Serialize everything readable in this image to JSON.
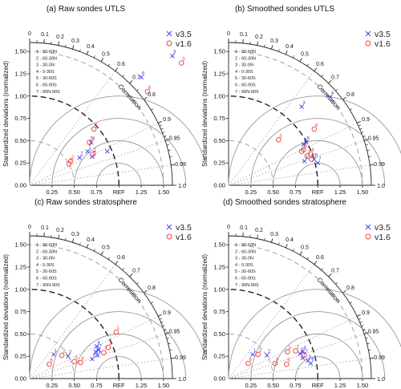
{
  "colors": {
    "v35": "#3a3af0",
    "v16": "#f03a3a"
  },
  "chart_data": [
    {
      "type": "scatter",
      "subtype": "taylor-diagram",
      "title": "(a) Raw sondes UTLS",
      "ylabel": "Standardized deviations (normalized)",
      "arc_label": "Correlation",
      "ref_label": "REF",
      "std_ticks": [
        "0.25",
        "0.50",
        "0.75",
        "1.00",
        "1.25",
        "1.50"
      ],
      "corr_ticks": [
        "0",
        "0.1",
        "0.2",
        "0.3",
        "0.4",
        "0.5",
        "0.6",
        "0.7",
        "0.8",
        "0.9",
        "0.95",
        "0.99",
        "1.0"
      ],
      "std_range": [
        0,
        1.6
      ],
      "grid": "dashed",
      "legend": {
        "regions": [
          "1 - 90-60N",
          "2 - 60-30N",
          "3 - 30-0N",
          "4 - 0-30S",
          "5 - 30-60S",
          "6 - 60-90S",
          "7 - 90N-90S"
        ],
        "series_names": [
          "v3.5",
          "v1.6"
        ],
        "placement": "top-right"
      },
      "series": [
        {
          "name": "v3.5",
          "marker": "x",
          "points": [
            {
              "label": "1",
              "x": 0.65,
              "y": 0.38
            },
            {
              "label": "2",
              "x": 0.56,
              "y": 0.31
            },
            {
              "label": "3",
              "x": 1.6,
              "y": 1.45
            },
            {
              "label": "4",
              "x": 0.69,
              "y": 0.48
            },
            {
              "label": "5",
              "x": 0.7,
              "y": 0.32
            },
            {
              "label": "6",
              "x": 1.25,
              "y": 1.21
            },
            {
              "label": "7",
              "x": 0.87,
              "y": 0.38
            }
          ]
        },
        {
          "name": "v1.6",
          "marker": "o",
          "points": [
            {
              "label": "1",
              "x": 0.71,
              "y": 0.35
            },
            {
              "label": "2",
              "x": 0.46,
              "y": 0.27
            },
            {
              "label": "3",
              "x": 1.7,
              "y": 1.37
            },
            {
              "label": "4",
              "x": 0.72,
              "y": 0.63
            },
            {
              "label": "5",
              "x": 0.67,
              "y": 0.48
            },
            {
              "label": "6",
              "x": 1.32,
              "y": 1.05
            },
            {
              "label": "7",
              "x": 0.44,
              "y": 0.24
            }
          ]
        }
      ]
    },
    {
      "type": "scatter",
      "subtype": "taylor-diagram",
      "title": "(b) Smoothed sondes UTLS",
      "ylabel": "Standardized deviations (normalized)",
      "arc_label": "Correlation",
      "ref_label": "REF",
      "std_ticks": [
        "0.25",
        "0.50",
        "0.75",
        "1.00",
        "1.25",
        "1.50"
      ],
      "corr_ticks": [
        "0",
        "0.1",
        "0.2",
        "0.3",
        "0.4",
        "0.5",
        "0.6",
        "0.7",
        "0.8",
        "0.9",
        "0.95",
        "0.99",
        "1.0"
      ],
      "std_range": [
        0,
        1.6
      ],
      "grid": "dashed",
      "legend": {
        "regions": [
          "1 - 90-60N",
          "2 - 60-30N",
          "3 - 30-0N",
          "4 - 0-30S",
          "5 - 30-60S",
          "6 - 60-90S",
          "7 - 90N-90S"
        ],
        "series_names": [
          "v3.5",
          "v1.6"
        ],
        "placement": "top-right"
      },
      "series": [
        {
          "name": "v3.5",
          "marker": "x",
          "points": [
            {
              "label": "1",
              "x": 0.85,
              "y": 0.27
            },
            {
              "label": "2",
              "x": 0.84,
              "y": 0.46
            },
            {
              "label": "3",
              "x": 0.82,
              "y": 0.88
            },
            {
              "label": "4",
              "x": 1.14,
              "y": 0.99
            },
            {
              "label": "5",
              "x": 0.87,
              "y": 0.48
            },
            {
              "label": "6",
              "x": 0.96,
              "y": 0.29
            },
            {
              "label": "7",
              "x": 1.0,
              "y": 0.25
            }
          ]
        },
        {
          "name": "v1.6",
          "marker": "o",
          "points": [
            {
              "label": "1",
              "x": 0.88,
              "y": 0.33
            },
            {
              "label": "2",
              "x": 0.82,
              "y": 0.38
            },
            {
              "label": "3",
              "x": 0.56,
              "y": 0.51
            },
            {
              "label": "4",
              "x": 0.96,
              "y": 0.63
            },
            {
              "label": "5",
              "x": 0.84,
              "y": 0.4
            },
            {
              "label": "6",
              "x": 0.92,
              "y": 0.35
            },
            {
              "label": "7",
              "x": 0.93,
              "y": 0.29
            }
          ]
        }
      ]
    },
    {
      "type": "scatter",
      "subtype": "taylor-diagram",
      "title": "(c) Raw sondes stratosphere",
      "ylabel": "Standardized deviations (normalized)",
      "arc_label": "Correlation",
      "ref_label": "REF",
      "std_ticks": [
        "0.25",
        "0.50",
        "0.75",
        "1.00",
        "1.25",
        "1.50"
      ],
      "corr_ticks": [
        "0",
        "0.1",
        "0.2",
        "0.3",
        "0.4",
        "0.5",
        "0.6",
        "0.7",
        "0.8",
        "0.9",
        "0.95",
        "0.99",
        "1.0"
      ],
      "std_range": [
        0,
        1.6
      ],
      "grid": "dashed",
      "legend": {
        "regions": [
          "1 - 90-60N",
          "2 - 60-30N",
          "3 - 30-0N",
          "4 - 0-30S",
          "5 - 30-60S",
          "6 - 60-90S",
          "7 - 90N-90S"
        ],
        "series_names": [
          "v3.5",
          "v1.6"
        ],
        "placement": "top-right"
      },
      "series": [
        {
          "name": "v3.5",
          "marker": "x",
          "points": [
            {
              "label": "1",
              "x": 0.27,
              "y": 0.27
            },
            {
              "label": "2",
              "x": 0.43,
              "y": 0.25
            },
            {
              "label": "3",
              "x": 0.74,
              "y": 0.3
            },
            {
              "label": "4",
              "x": 0.75,
              "y": 0.36
            },
            {
              "label": "5",
              "x": 0.76,
              "y": 0.26
            },
            {
              "label": "6",
              "x": 0.7,
              "y": 0.22
            },
            {
              "label": "7",
              "x": 0.77,
              "y": 0.32
            }
          ]
        },
        {
          "name": "v1.6",
          "marker": "o",
          "points": [
            {
              "label": "1",
              "x": 0.97,
              "y": 0.52
            },
            {
              "label": "2",
              "x": 0.36,
              "y": 0.26
            },
            {
              "label": "3",
              "x": 0.88,
              "y": 0.35
            },
            {
              "label": "4",
              "x": 0.57,
              "y": 0.18
            },
            {
              "label": "5",
              "x": 0.5,
              "y": 0.19
            },
            {
              "label": "6",
              "x": 0.22,
              "y": 0.16
            },
            {
              "label": "7",
              "x": 0.83,
              "y": 0.29
            }
          ]
        }
      ]
    },
    {
      "type": "scatter",
      "subtype": "taylor-diagram",
      "title": "(d) Smoothed sondes stratosphere",
      "ylabel": "Standardized deviations (normalized)",
      "arc_label": "Correlation",
      "ref_label": "REF",
      "std_ticks": [
        "0.25",
        "0.50",
        "0.75",
        "1.00",
        "1.25",
        "1.50"
      ],
      "corr_ticks": [
        "0",
        "0.1",
        "0.2",
        "0.3",
        "0.4",
        "0.5",
        "0.6",
        "0.7",
        "0.8",
        "0.9",
        "0.95",
        "0.99",
        "1.0"
      ],
      "std_range": [
        0,
        1.6
      ],
      "grid": "dashed",
      "legend": {
        "regions": [
          "1 - 90-60N",
          "2 - 60-30N",
          "3 - 30-0N",
          "4 - 0-30S",
          "5 - 30-60S",
          "6 - 60-90S",
          "7 - 90N-90S"
        ],
        "series_names": [
          "v3.5",
          "v1.6"
        ],
        "placement": "top-right"
      },
      "series": [
        {
          "name": "v3.5",
          "marker": "x",
          "points": [
            {
              "label": "1",
              "x": 0.27,
              "y": 0.27
            },
            {
              "label": "2",
              "x": 0.43,
              "y": 0.26
            },
            {
              "label": "3",
              "x": 0.8,
              "y": 0.28
            },
            {
              "label": "4",
              "x": 0.83,
              "y": 0.3
            },
            {
              "label": "5",
              "x": 0.89,
              "y": 0.2
            },
            {
              "label": "6",
              "x": 0.92,
              "y": 0.17
            },
            {
              "label": "7",
              "x": 0.83,
              "y": 0.23
            }
          ]
        },
        {
          "name": "v1.6",
          "marker": "o",
          "points": [
            {
              "label": "1",
              "x": 0.75,
              "y": 0.31
            },
            {
              "label": "2",
              "x": 0.33,
              "y": 0.27
            },
            {
              "label": "3",
              "x": 0.66,
              "y": 0.3
            },
            {
              "label": "4",
              "x": 0.52,
              "y": 0.17
            },
            {
              "label": "5",
              "x": 0.65,
              "y": 0.16
            },
            {
              "label": "6",
              "x": 0.22,
              "y": 0.17
            },
            {
              "label": "7",
              "x": 0.85,
              "y": 0.26
            }
          ]
        }
      ]
    }
  ]
}
